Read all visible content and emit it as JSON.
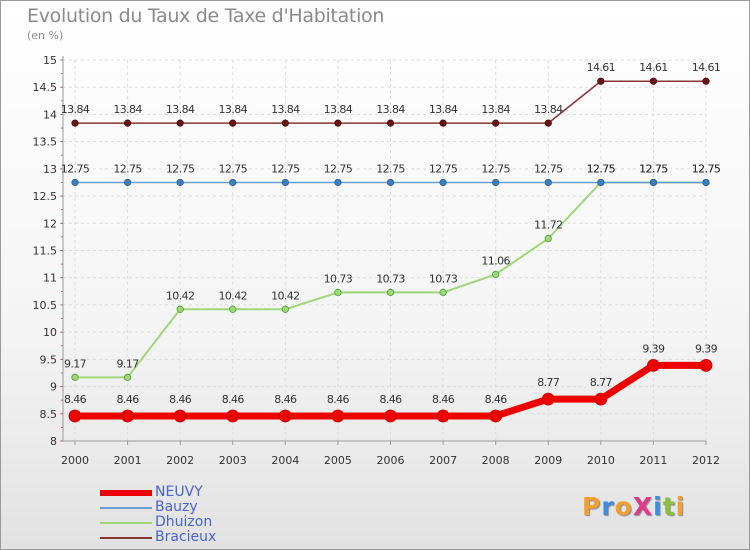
{
  "title": "Evolution du Taux de Taxe d'Habitation",
  "unit": "(en %)",
  "logo": {
    "text": "ProXiti",
    "letters": [
      "P",
      "r",
      "o",
      "X",
      "i",
      "t",
      "i"
    ],
    "colors": [
      "#f0a030",
      "#3a8de0",
      "#f0a030",
      "#e03a8a",
      "#3a8de0",
      "#8ac040",
      "#f0a030"
    ]
  },
  "chart_data": {
    "type": "line",
    "title": "Evolution du Taux de Taxe d'Habitation",
    "ylabel": "(en %)",
    "xlabel": "",
    "x": [
      "2000",
      "2001",
      "2002",
      "2003",
      "2004",
      "2005",
      "2006",
      "2007",
      "2008",
      "2009",
      "2010",
      "2011",
      "2012"
    ],
    "ylim": [
      8,
      15
    ],
    "yticks": [
      "8",
      "8.5",
      "9",
      "9.5",
      "10",
      "10.5",
      "11",
      "11.5",
      "12",
      "12.5",
      "13",
      "13.5",
      "14",
      "14.5",
      "15"
    ],
    "grid": true,
    "legend_position": "bottom-left",
    "series": [
      {
        "name": "NEUVY",
        "color": "#ee0000",
        "values": [
          8.46,
          8.46,
          8.46,
          8.46,
          8.46,
          8.46,
          8.46,
          8.46,
          8.46,
          8.77,
          8.77,
          9.39,
          9.39
        ],
        "labels": [
          "8.46",
          "8.46",
          "8.46",
          "8.46",
          "8.46",
          "8.46",
          "8.46",
          "8.46",
          "8.46",
          "8.77",
          "8.77",
          "9.39",
          "9.39"
        ]
      },
      {
        "name": "Bauzy",
        "color": "#6a9fd2",
        "values": [
          12.75,
          12.75,
          12.75,
          12.75,
          12.75,
          12.75,
          12.75,
          12.75,
          12.75,
          12.75,
          12.75,
          12.75,
          12.75
        ],
        "labels": [
          "12.75",
          "12.75",
          "12.75",
          "12.75",
          "12.75",
          "12.75",
          "12.75",
          "12.75",
          "12.75",
          "12.75",
          "12.75",
          "12.75",
          "12.75"
        ]
      },
      {
        "name": "Dhuizon",
        "color": "#9ed77a",
        "values": [
          9.17,
          9.17,
          10.42,
          10.42,
          10.42,
          10.73,
          10.73,
          10.73,
          11.06,
          11.72,
          12.75,
          12.75,
          12.75
        ],
        "labels": [
          "9.17",
          "9.17",
          "10.42",
          "10.42",
          "10.42",
          "10.73",
          "10.73",
          "10.73",
          "11.06",
          "11.72",
          "12.75",
          "12.75",
          "12.75"
        ]
      },
      {
        "name": "Bracieux",
        "color": "#8a3535",
        "values": [
          13.84,
          13.84,
          13.84,
          13.84,
          13.84,
          13.84,
          13.84,
          13.84,
          13.84,
          13.84,
          14.61,
          14.61,
          14.61
        ],
        "labels": [
          "13.84",
          "13.84",
          "13.84",
          "13.84",
          "13.84",
          "13.84",
          "13.84",
          "13.84",
          "13.84",
          "13.84",
          "14.61",
          "14.61",
          "14.61"
        ]
      }
    ]
  }
}
